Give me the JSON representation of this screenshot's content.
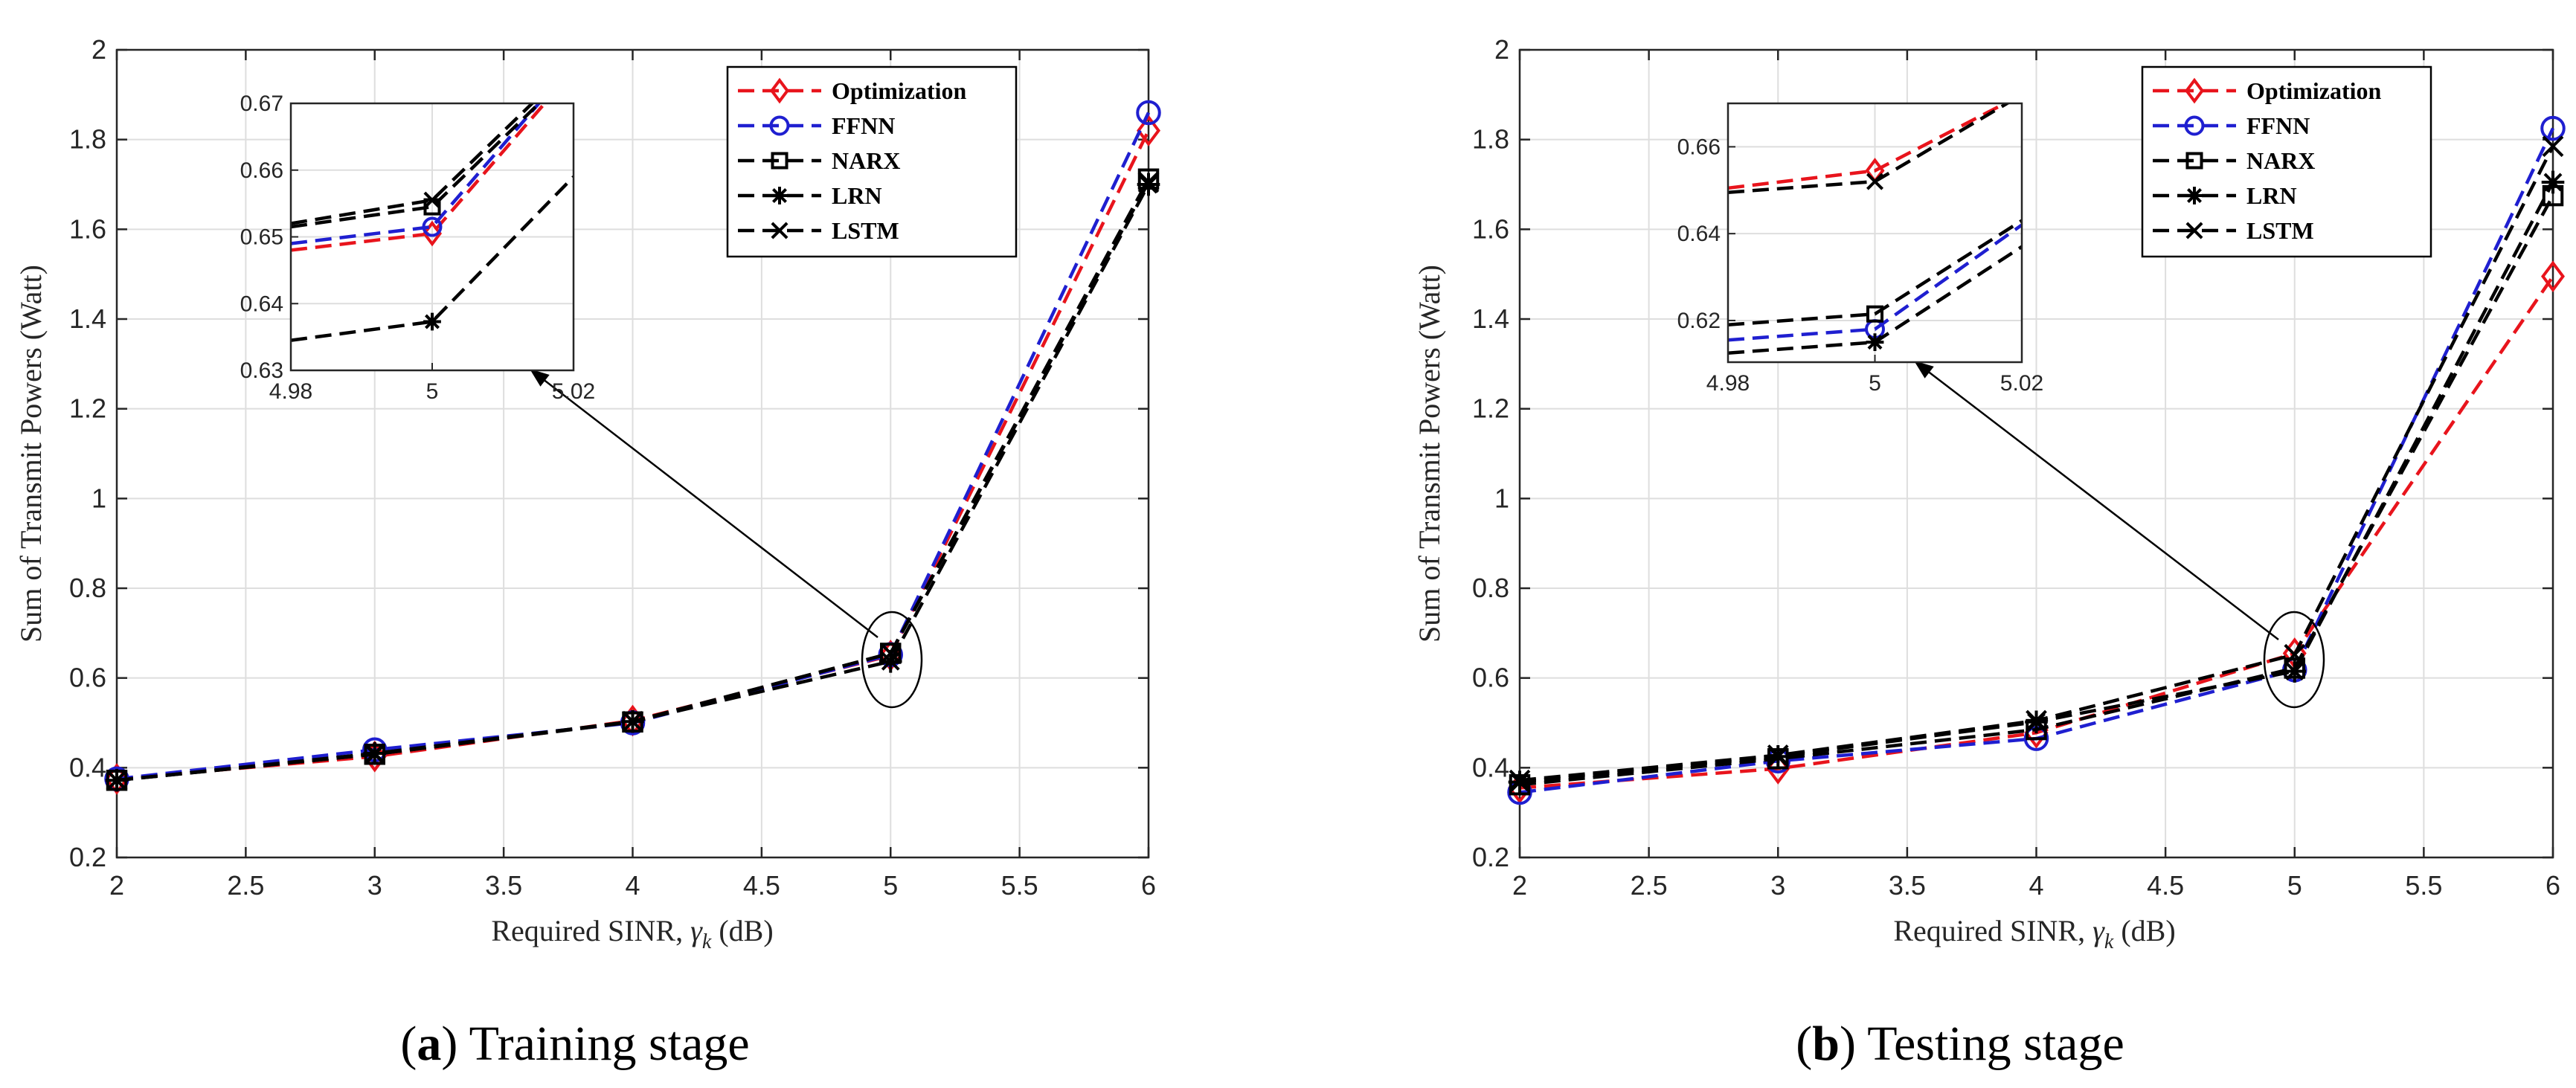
{
  "chart_data": [
    {
      "type": "line",
      "id": "a",
      "caption_letter": "a",
      "caption_text": "Training stage",
      "xlabel_prefix": "Required SINR, ",
      "xlabel_symbol": "γ",
      "xlabel_sub": "k",
      "xlabel_suffix": " (dB)",
      "ylabel": "Sum of Transmit Powers (Watt)",
      "xlim": [
        2,
        6
      ],
      "ylim": [
        0.2,
        2
      ],
      "xticks": [
        "2",
        "2.5",
        "3",
        "3.5",
        "4",
        "4.5",
        "5",
        "5.5",
        "6"
      ],
      "yticks": [
        "0.2",
        "0.4",
        "0.6",
        "0.8",
        "1",
        "1.2",
        "1.4",
        "1.6",
        "1.8",
        "2"
      ],
      "grid": true,
      "x": [
        2,
        3,
        4,
        5,
        6
      ],
      "series": [
        {
          "name": "Optimization",
          "color": "#e8141c",
          "marker": "diamond",
          "values": [
            0.375,
            0.425,
            0.505,
            0.65,
            1.82
          ]
        },
        {
          "name": "FFNN",
          "color": "#1f1fd0",
          "marker": "circle",
          "values": [
            0.375,
            0.44,
            0.5,
            0.652,
            1.86
          ]
        },
        {
          "name": "NARX",
          "color": "#000000",
          "marker": "square",
          "values": [
            0.372,
            0.43,
            0.502,
            0.655,
            1.712
          ]
        },
        {
          "name": "LRN",
          "color": "#000000",
          "marker": "asterisk",
          "values": [
            0.372,
            0.432,
            0.503,
            0.637,
            1.7
          ]
        },
        {
          "name": "LSTM",
          "color": "#000000",
          "marker": "cross",
          "values": [
            0.372,
            0.43,
            0.503,
            0.655,
            1.705
          ]
        }
      ],
      "legend_location": "top-right",
      "inset": {
        "xlim": [
          4.98,
          5.02
        ],
        "ylim": [
          0.63,
          0.67
        ],
        "xticks": [
          "4.98",
          "5",
          "5.02"
        ],
        "yticks": [
          "0.63",
          "0.64",
          "0.65",
          "0.66",
          "0.67"
        ],
        "ytick_values": [
          0.63,
          0.64,
          0.65,
          0.66,
          0.67
        ],
        "series": [
          {
            "name": "Optimization",
            "color": "#e8141c",
            "marker": "diamond",
            "x": [
              4.98,
              5,
              5.02
            ],
            "values": [
              0.648,
              0.6505,
              0.675
            ]
          },
          {
            "name": "FFNN",
            "color": "#1f1fd0",
            "marker": "circle",
            "x": [
              4.98,
              5,
              5.02
            ],
            "values": [
              0.649,
              0.6515,
              0.676
            ]
          },
          {
            "name": "NARX",
            "color": "#000000",
            "marker": "square",
            "x": [
              4.98,
              5,
              5.02
            ],
            "values": [
              0.6515,
              0.6545,
              0.675
            ]
          },
          {
            "name": "LRN",
            "color": "#000000",
            "marker": "asterisk",
            "x": [
              4.98,
              5,
              5.02
            ],
            "values": [
              0.6345,
              0.6373,
              0.659
            ]
          },
          {
            "name": "LSTM",
            "color": "#000000",
            "marker": "cross",
            "x": [
              4.98,
              5,
              5.02
            ],
            "values": [
              0.652,
              0.6555,
              0.676
            ]
          }
        ]
      }
    },
    {
      "type": "line",
      "id": "b",
      "caption_letter": "b",
      "caption_text": "Testing stage",
      "xlabel_prefix": "Required SINR, ",
      "xlabel_symbol": "γ",
      "xlabel_sub": "k",
      "xlabel_suffix": " (dB)",
      "ylabel": "Sum of Transmit Powers (Watt)",
      "xlim": [
        2,
        6
      ],
      "ylim": [
        0.2,
        2
      ],
      "xticks": [
        "2",
        "2.5",
        "3",
        "3.5",
        "4",
        "4.5",
        "5",
        "5.5",
        "6"
      ],
      "yticks": [
        "0.2",
        "0.4",
        "0.6",
        "0.8",
        "1",
        "1.2",
        "1.4",
        "1.6",
        "1.8",
        "2"
      ],
      "grid": true,
      "x": [
        2,
        3,
        4,
        5,
        6
      ],
      "series": [
        {
          "name": "Optimization",
          "color": "#e8141c",
          "marker": "diamond",
          "values": [
            0.355,
            0.398,
            0.478,
            0.655,
            1.495
          ]
        },
        {
          "name": "FFNN",
          "color": "#1f1fd0",
          "marker": "circle",
          "values": [
            0.345,
            0.415,
            0.465,
            0.618,
            1.825
          ]
        },
        {
          "name": "NARX",
          "color": "#000000",
          "marker": "square",
          "values": [
            0.362,
            0.42,
            0.485,
            0.622,
            1.675
          ]
        },
        {
          "name": "LRN",
          "color": "#000000",
          "marker": "asterisk",
          "values": [
            0.368,
            0.425,
            0.502,
            0.615,
            1.705
          ]
        },
        {
          "name": "LSTM",
          "color": "#000000",
          "marker": "cross",
          "values": [
            0.372,
            0.428,
            0.505,
            0.652,
            1.785
          ]
        }
      ],
      "legend_location": "top-right",
      "inset": {
        "xlim": [
          4.98,
          5.02
        ],
        "ylim": [
          0.6104,
          0.67
        ],
        "xticks": [
          "4.98",
          "5",
          "5.02"
        ],
        "yticks": [
          "0.62",
          "0.64",
          "0.66"
        ],
        "ytick_values": [
          0.62,
          0.64,
          0.66
        ],
        "series": [
          {
            "name": "Optimization",
            "color": "#e8141c",
            "marker": "diamond",
            "x": [
              4.98,
              5,
              5.02
            ],
            "values": [
              0.6505,
              0.6545,
              0.672
            ]
          },
          {
            "name": "FFNN",
            "color": "#1f1fd0",
            "marker": "circle",
            "x": [
              4.98,
              5,
              5.02
            ],
            "values": [
              0.6155,
              0.618,
              0.642
            ]
          },
          {
            "name": "NARX",
            "color": "#000000",
            "marker": "square",
            "x": [
              4.98,
              5,
              5.02
            ],
            "values": [
              0.619,
              0.6215,
              0.643
            ]
          },
          {
            "name": "LRN",
            "color": "#000000",
            "marker": "asterisk",
            "x": [
              4.98,
              5,
              5.02
            ],
            "values": [
              0.6125,
              0.615,
              0.637
            ]
          },
          {
            "name": "LSTM",
            "color": "#000000",
            "marker": "cross",
            "x": [
              4.98,
              5,
              5.02
            ],
            "values": [
              0.6495,
              0.652,
              0.672
            ]
          }
        ]
      }
    }
  ]
}
